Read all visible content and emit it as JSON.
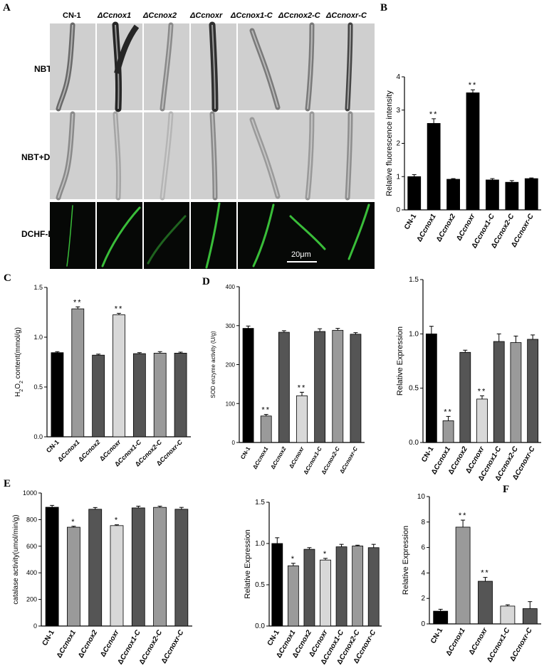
{
  "panel_letters": {
    "A": "A",
    "B": "B",
    "C": "C",
    "D": "D",
    "E": "E",
    "F": "F"
  },
  "panelA": {
    "headers": [
      "CN-1",
      "ΔCcnox1",
      "ΔCcnox2",
      "ΔCcnoxr",
      "ΔCcnox1-C",
      "ΔCcnox2-C",
      "ΔCcnoxr-C"
    ],
    "rows": [
      "NBT",
      "NBT+DPI",
      "DCHF-DA"
    ],
    "scale_bar": "20μm",
    "bf_color": "#cfcfcf",
    "fl_color": "#060806",
    "hypha_green": "#3fd23f"
  },
  "chart_data": [
    {
      "id": "B",
      "type": "bar",
      "categories": [
        "CN-1",
        "ΔCcnox1",
        "ΔCcnox2",
        "ΔCcnoxr",
        "ΔCcnox1-C",
        "ΔCcnox2-C",
        "ΔCcnoxr-C"
      ],
      "values": [
        1.0,
        2.6,
        0.92,
        3.52,
        0.9,
        0.83,
        0.94
      ],
      "errors": [
        0.06,
        0.14,
        0.02,
        0.09,
        0.04,
        0.05,
        0.02
      ],
      "sig": [
        "",
        "**",
        "",
        "**",
        "",
        "",
        ""
      ],
      "colors": [
        "#000000",
        "#000000",
        "#000000",
        "#000000",
        "#000000",
        "#000000",
        "#000000"
      ],
      "ylabel": "Relative fluorescence intensity",
      "ylim": [
        0,
        4
      ],
      "yticks": [
        0,
        1,
        2,
        3,
        4
      ]
    },
    {
      "id": "C",
      "type": "bar",
      "categories": [
        "CN-1",
        "ΔCcnox1",
        "ΔCcnox2",
        "ΔCcnoxr",
        "ΔCcnox1-C",
        "ΔCcnox2-C",
        "ΔCcnoxr-C"
      ],
      "values": [
        0.845,
        1.285,
        0.82,
        1.225,
        0.835,
        0.84,
        0.84
      ],
      "errors": [
        0.01,
        0.02,
        0.01,
        0.015,
        0.01,
        0.015,
        0.01
      ],
      "sig": [
        "",
        "**",
        "",
        "**",
        "",
        "",
        ""
      ],
      "colors": [
        "#000000",
        "#9a9a9a",
        "#555555",
        "#d8d8d8",
        "#555555",
        "#9a9a9a",
        "#555555"
      ],
      "ylabel": "H2O2 content(mmol/g)",
      "ylim": [
        0,
        1.5
      ],
      "yticks": [
        0.0,
        0.5,
        1.0,
        1.5
      ],
      "ytick_labels": [
        "0.0",
        "0.5",
        "1.0",
        "1.5"
      ]
    },
    {
      "id": "D1",
      "type": "bar",
      "categories": [
        "CN-1",
        "ΔCcnox1",
        "ΔCcnox2",
        "ΔCcnoxr",
        "ΔCcnox1-C",
        "ΔCcnox2-C",
        "ΔCcnoxr-C"
      ],
      "values": [
        293,
        68,
        283,
        120,
        285,
        288,
        278
      ],
      "errors": [
        6,
        4,
        4,
        9,
        7,
        5,
        4
      ],
      "sig": [
        "",
        "**",
        "",
        "**",
        "",
        "",
        ""
      ],
      "colors": [
        "#000000",
        "#9a9a9a",
        "#555555",
        "#d8d8d8",
        "#555555",
        "#9a9a9a",
        "#555555"
      ],
      "ylabel": "SOD enzyme activity (U/g)",
      "ylim": [
        0,
        400
      ],
      "yticks": [
        0,
        100,
        200,
        300,
        400
      ]
    },
    {
      "id": "D2",
      "type": "bar",
      "categories": [
        "CN-1",
        "ΔCcnox1",
        "ΔCcnox2",
        "ΔCcnoxr",
        "ΔCcnox1-C",
        "ΔCcnox2-C",
        "ΔCcnoxr-C"
      ],
      "values": [
        1.0,
        0.2,
        0.83,
        0.4,
        0.93,
        0.92,
        0.95
      ],
      "errors": [
        0.07,
        0.04,
        0.02,
        0.03,
        0.07,
        0.06,
        0.04
      ],
      "sig": [
        "",
        "**",
        "",
        "**",
        "",
        "",
        ""
      ],
      "colors": [
        "#000000",
        "#9a9a9a",
        "#555555",
        "#d8d8d8",
        "#555555",
        "#9a9a9a",
        "#555555"
      ],
      "ylabel": "Relative Expression",
      "ylim": [
        0,
        1.5
      ],
      "yticks": [
        0.0,
        0.5,
        1.0,
        1.5
      ],
      "ytick_labels": [
        "0.0",
        "0.5",
        "1.0",
        "1.5"
      ]
    },
    {
      "id": "E1",
      "type": "bar",
      "categories": [
        "CN-1",
        "ΔCcnox1",
        "ΔCcnox2",
        "ΔCcnoxr",
        "ΔCcnox1-C",
        "ΔCcnox2-C",
        "ΔCcnoxr-C"
      ],
      "values": [
        893,
        743,
        878,
        755,
        888,
        892,
        878
      ],
      "errors": [
        14,
        7,
        13,
        6,
        13,
        9,
        14
      ],
      "sig": [
        "",
        "*",
        "",
        "*",
        "",
        "",
        ""
      ],
      "colors": [
        "#000000",
        "#9a9a9a",
        "#555555",
        "#d8d8d8",
        "#555555",
        "#9a9a9a",
        "#555555"
      ],
      "ylabel": "catalase activity(umol/min/g)",
      "ylim": [
        0,
        1000
      ],
      "yticks": [
        0,
        200,
        400,
        600,
        800,
        1000
      ]
    },
    {
      "id": "E2",
      "type": "bar",
      "categories": [
        "CN-1",
        "ΔCcnox1",
        "ΔCcnox2",
        "ΔCcnoxr",
        "ΔCcnox1-C",
        "ΔCcnox2-C",
        "ΔCcnoxr-C"
      ],
      "values": [
        1.0,
        0.73,
        0.93,
        0.8,
        0.96,
        0.97,
        0.95
      ],
      "errors": [
        0.07,
        0.03,
        0.02,
        0.02,
        0.03,
        0.01,
        0.04
      ],
      "sig": [
        "",
        "*",
        "",
        "*",
        "",
        "",
        ""
      ],
      "colors": [
        "#000000",
        "#9a9a9a",
        "#555555",
        "#d8d8d8",
        "#555555",
        "#9a9a9a",
        "#555555"
      ],
      "ylabel": "Relative Expression",
      "ylim": [
        0,
        1.5
      ],
      "yticks": [
        0.0,
        0.5,
        1.0,
        1.5
      ],
      "ytick_labels": [
        "0.0",
        "0.5",
        "1.0",
        "1.5"
      ]
    },
    {
      "id": "F",
      "type": "bar",
      "categories": [
        "CN-1",
        "ΔCcnox1",
        "ΔCcnoxr",
        "ΔCcnox1-C",
        "ΔCcnoxr-C"
      ],
      "values": [
        1.0,
        7.6,
        3.35,
        1.4,
        1.2
      ],
      "errors": [
        0.15,
        0.55,
        0.3,
        0.1,
        0.55
      ],
      "sig": [
        "",
        "**",
        "**",
        "",
        ""
      ],
      "colors": [
        "#000000",
        "#9a9a9a",
        "#555555",
        "#d8d8d8",
        "#555555"
      ],
      "ylabel": "Relative Expression",
      "ylim": [
        0,
        10
      ],
      "yticks": [
        0,
        2,
        4,
        6,
        8,
        10
      ]
    }
  ]
}
